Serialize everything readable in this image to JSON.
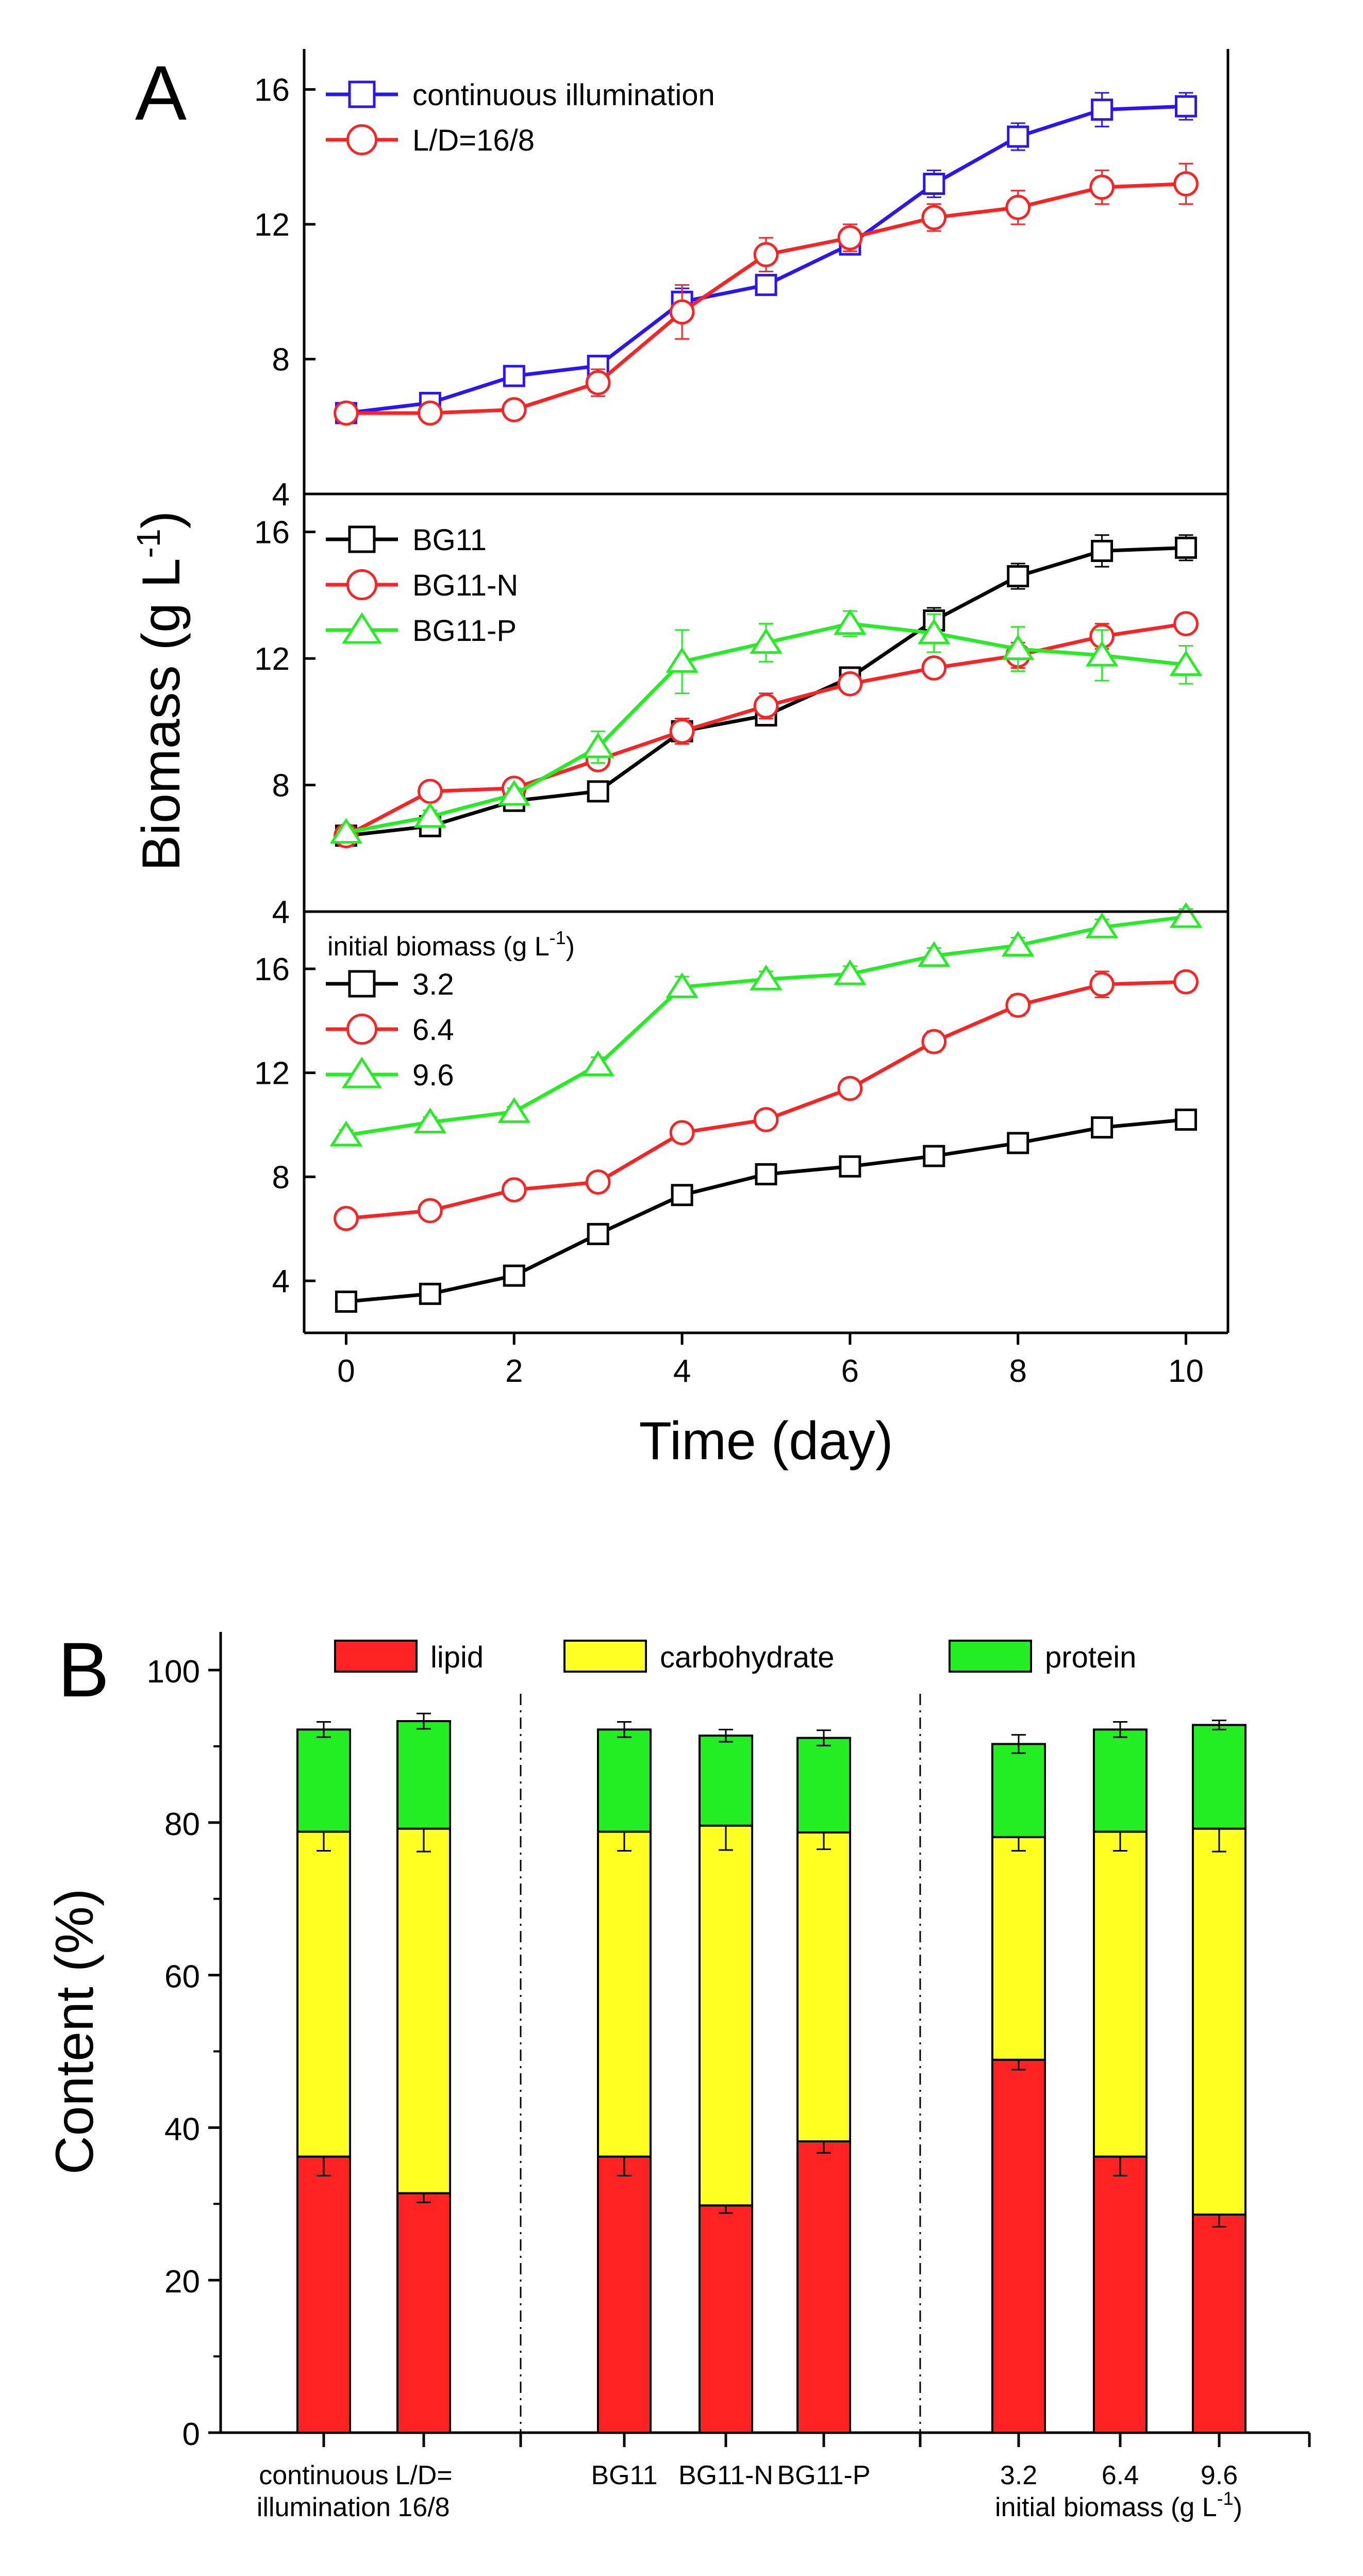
{
  "chart_data": [
    {
      "panel": "A",
      "type": "line",
      "shared_xlabel": "Time (day)",
      "shared_ylabel": "Biomass (g L-1)",
      "ylabel_main": "Biomass (g L",
      "ylabel_sup": "-1",
      "ylabel_close": ")",
      "x_ticks": [
        "0",
        "2",
        "4",
        "6",
        "8",
        "10"
      ],
      "xlim": [
        -0.5,
        10.5
      ],
      "subplots": [
        {
          "ylim": [
            4,
            17.2
          ],
          "y_ticks": [
            "4",
            "8",
            "12",
            "16"
          ],
          "x": [
            0,
            1,
            2,
            3,
            4,
            5,
            6,
            7,
            8,
            9,
            10
          ],
          "series": [
            {
              "name": "continuous illumination",
              "marker": "square",
              "color": "#2a14ff",
              "values": [
                6.4,
                6.7,
                7.5,
                7.8,
                9.7,
                10.2,
                11.4,
                13.2,
                14.6,
                15.4,
                15.5
              ],
              "errors": [
                0.15,
                0.15,
                0.2,
                0.2,
                0.4,
                0.3,
                0.3,
                0.4,
                0.4,
                0.5,
                0.4
              ]
            },
            {
              "name": "L/D=16/8",
              "marker": "circle",
              "color": "#ff2222",
              "values": [
                6.4,
                6.4,
                6.5,
                7.3,
                9.4,
                11.1,
                11.6,
                12.2,
                12.5,
                13.1,
                13.2
              ],
              "errors": [
                0.15,
                0.15,
                0.2,
                0.4,
                0.8,
                0.5,
                0.4,
                0.4,
                0.5,
                0.5,
                0.6
              ]
            }
          ]
        },
        {
          "ylim": [
            4,
            17.2
          ],
          "y_ticks": [
            "4",
            "8",
            "12",
            "16"
          ],
          "x": [
            0,
            1,
            2,
            3,
            4,
            5,
            6,
            7,
            8,
            9,
            10
          ],
          "series": [
            {
              "name": "BG11",
              "marker": "square",
              "color": "#000000",
              "values": [
                6.4,
                6.7,
                7.5,
                7.8,
                9.7,
                10.2,
                11.4,
                13.2,
                14.6,
                15.4,
                15.5
              ],
              "errors": [
                0.15,
                0.15,
                0.2,
                0.2,
                0.4,
                0.3,
                0.3,
                0.4,
                0.4,
                0.5,
                0.4
              ]
            },
            {
              "name": "BG11-N",
              "marker": "circle",
              "color": "#ff2222",
              "values": [
                6.4,
                7.8,
                7.9,
                8.8,
                9.7,
                10.5,
                11.2,
                11.7,
                12.1,
                12.7,
                13.1
              ],
              "errors": [
                0.15,
                0.15,
                0.2,
                0.2,
                0.4,
                0.4,
                0.3,
                0.3,
                0.4,
                0.4,
                0.3
              ]
            },
            {
              "name": "BG11-P",
              "marker": "triangle",
              "color": "#22ee22",
              "values": [
                6.5,
                7.0,
                7.7,
                9.2,
                11.9,
                12.5,
                13.1,
                12.8,
                12.3,
                12.1,
                11.8
              ],
              "errors": [
                0.15,
                0.2,
                0.2,
                0.5,
                1.0,
                0.6,
                0.4,
                0.6,
                0.7,
                0.8,
                0.6
              ]
            }
          ]
        },
        {
          "ylim": [
            2,
            18.2
          ],
          "y_ticks": [
            "4",
            "8",
            "12",
            "16"
          ],
          "legend_title_main": "initial biomass (g L",
          "legend_title_sup": "-1",
          "legend_title_close": ")",
          "x": [
            0,
            1,
            2,
            3,
            4,
            5,
            6,
            7,
            8,
            9,
            10
          ],
          "series": [
            {
              "name": "3.2",
              "marker": "square",
              "color": "#000000",
              "values": [
                3.2,
                3.5,
                4.2,
                5.8,
                7.3,
                8.1,
                8.4,
                8.8,
                9.3,
                9.9,
                10.2
              ],
              "errors": [
                0.1,
                0.2,
                0.3,
                0.2,
                0.2,
                0.2,
                0.2,
                0.2,
                0.2,
                0.2,
                0.2
              ]
            },
            {
              "name": "6.4",
              "marker": "circle",
              "color": "#ff2222",
              "values": [
                6.4,
                6.7,
                7.5,
                7.8,
                9.7,
                10.2,
                11.4,
                13.2,
                14.6,
                15.4,
                15.5
              ],
              "errors": [
                0.15,
                0.15,
                0.2,
                0.2,
                0.3,
                0.3,
                0.3,
                0.4,
                0.4,
                0.5,
                0.3
              ]
            },
            {
              "name": "9.6",
              "marker": "triangle",
              "color": "#22ee22",
              "values": [
                9.6,
                10.1,
                10.5,
                12.3,
                15.3,
                15.6,
                15.8,
                16.5,
                16.9,
                17.6,
                18.0
              ],
              "errors": [
                0.2,
                0.2,
                0.2,
                0.3,
                0.4,
                0.3,
                0.3,
                0.3,
                0.3,
                0.3,
                0.3
              ]
            }
          ]
        }
      ]
    },
    {
      "panel": "B",
      "type": "bar",
      "stacked": true,
      "ylabel": "Content (%)",
      "ylim": [
        0,
        105
      ],
      "y_ticks": [
        "0",
        "20",
        "40",
        "60",
        "80",
        "100"
      ],
      "legend": [
        {
          "name": "lipid",
          "color": "#ff2222"
        },
        {
          "name": "carbohydrate",
          "color": "#ffff22"
        },
        {
          "name": "protein",
          "color": "#22ee22"
        }
      ],
      "categories": [
        "continuous illumination",
        "L/D=16/8",
        "BG11",
        "BG11-N",
        "BG11-P",
        "3.2",
        "6.4",
        "9.6"
      ],
      "category_label_lines": [
        [
          "continuous",
          "illumination"
        ],
        [
          "L/D=",
          "16/8"
        ],
        [
          "BG11"
        ],
        [
          "BG11-N"
        ],
        [
          "BG11-P"
        ],
        [
          "3.2"
        ],
        [
          "6.4"
        ],
        [
          "9.6"
        ]
      ],
      "group_caption_main": "initial biomass (g L",
      "group_caption_sup": "-1",
      "group_caption_close": ")",
      "series": [
        {
          "name": "lipid",
          "values": [
            36.2,
            31.4,
            36.2,
            29.8,
            38.2,
            48.9,
            36.2,
            28.6
          ],
          "errors": [
            2.5,
            1.2,
            2.5,
            1.0,
            1.5,
            1.3,
            2.5,
            1.6
          ]
        },
        {
          "name": "carbohydrate",
          "values": [
            42.6,
            47.8,
            42.6,
            49.8,
            40.5,
            29.2,
            42.6,
            50.6
          ],
          "errors": [
            2.5,
            3.0,
            2.5,
            3.2,
            2.2,
            1.8,
            2.5,
            3.0
          ]
        },
        {
          "name": "protein",
          "values": [
            13.4,
            14.1,
            13.4,
            11.8,
            12.4,
            12.2,
            13.4,
            13.6
          ],
          "errors": [
            1.0,
            1.0,
            1.0,
            0.8,
            1.0,
            1.2,
            1.0,
            0.6
          ]
        }
      ]
    }
  ]
}
